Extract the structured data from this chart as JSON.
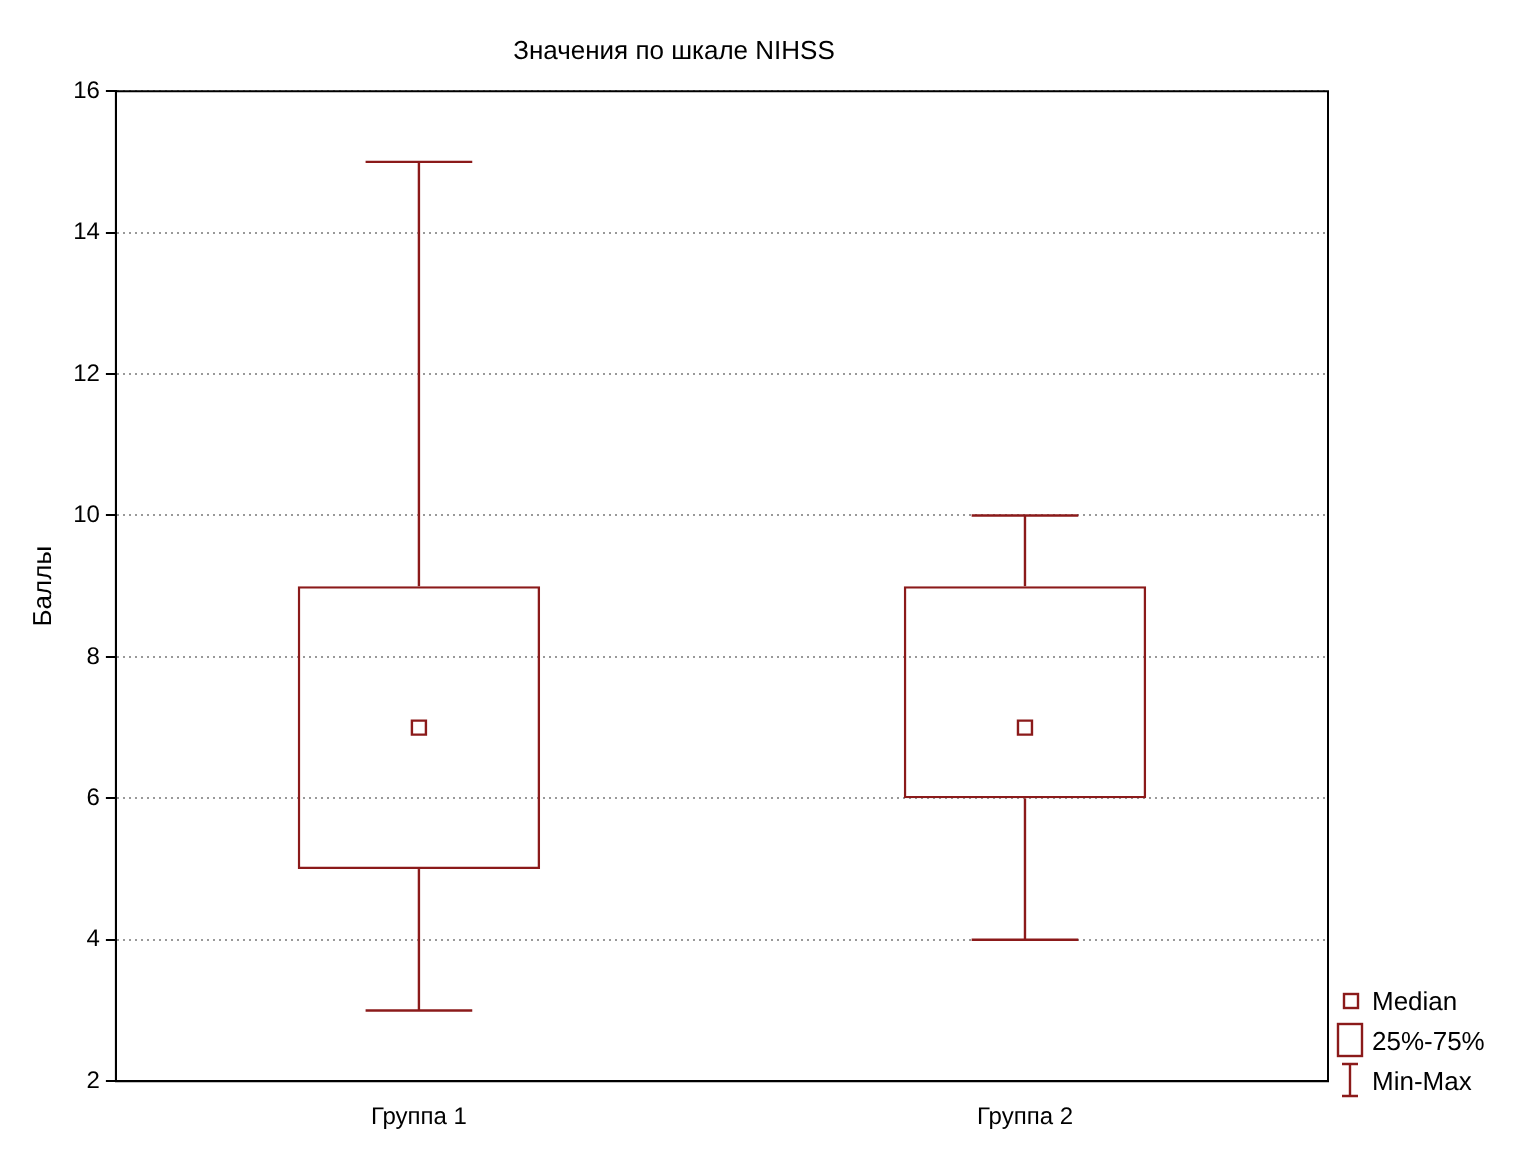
{
  "chart_data": {
    "type": "box",
    "title": "Значения по шкале NIHSS",
    "ylabel": "Баллы",
    "categories": [
      "Группа 1",
      "Группа 2"
    ],
    "boxes": [
      {
        "low": 3,
        "q1": 5,
        "median": 7,
        "q3": 9,
        "high": 15
      },
      {
        "low": 4,
        "q1": 6,
        "median": 7,
        "q3": 9,
        "high": 10
      }
    ],
    "color": "#8b1a1a",
    "ylim": [
      2,
      16
    ],
    "yticks": [
      2,
      4,
      6,
      8,
      10,
      12,
      14,
      16
    ],
    "grid": "y",
    "annotations": [
      "Median",
      "25%-75%",
      "Min-Max"
    ]
  }
}
